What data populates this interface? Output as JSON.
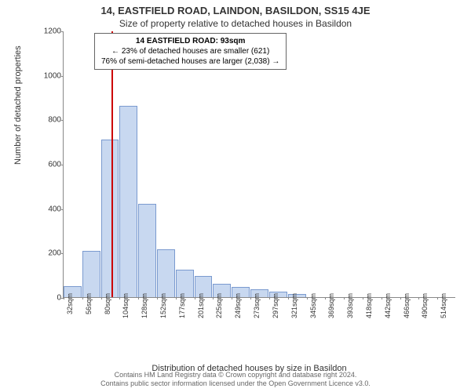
{
  "title_main": "14, EASTFIELD ROAD, LAINDON, BASILDON, SS15 4JE",
  "title_sub": "Size of property relative to detached houses in Basildon",
  "info_box": {
    "line1": "14 EASTFIELD ROAD: 93sqm",
    "line2": "← 23% of detached houses are smaller (621)",
    "line3": "76% of semi-detached houses are larger (2,038) →"
  },
  "chart": {
    "type": "histogram",
    "ylabel": "Number of detached properties",
    "xlabel": "Distribution of detached houses by size in Basildon",
    "ylim": [
      0,
      1200
    ],
    "yticks": [
      0,
      200,
      400,
      600,
      800,
      1000,
      1200
    ],
    "xticks_labels": [
      "32sqm",
      "56sqm",
      "80sqm",
      "104sqm",
      "128sqm",
      "152sqm",
      "177sqm",
      "201sqm",
      "225sqm",
      "249sqm",
      "273sqm",
      "297sqm",
      "321sqm",
      "345sqm",
      "369sqm",
      "393sqm",
      "418sqm",
      "442sqm",
      "466sqm",
      "490sqm",
      "514sqm"
    ],
    "bar_color": "#c8d8f0",
    "bar_border": "#7a9acf",
    "background_color": "#ffffff",
    "axis_color": "#888888",
    "marker": {
      "position_index": 2.55,
      "color": "#cc0000"
    },
    "values": [
      50,
      210,
      710,
      860,
      420,
      215,
      125,
      95,
      60,
      45,
      35,
      25,
      15,
      0,
      0,
      0,
      0,
      0,
      0,
      0,
      0
    ]
  },
  "footer": {
    "line1": "Contains HM Land Registry data © Crown copyright and database right 2024.",
    "line2": "Contains public sector information licensed under the Open Government Licence v3.0."
  }
}
